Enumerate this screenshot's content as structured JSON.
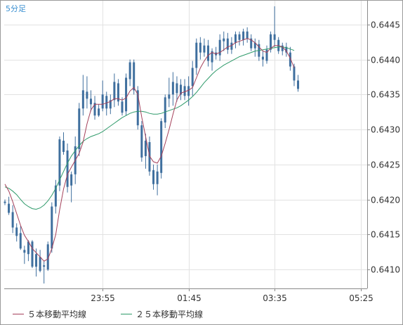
{
  "timeframe_label": "5分足",
  "legend": [
    {
      "label": "５本移動平均線",
      "color": "#a4405a"
    },
    {
      "label": "２５本移動平均線",
      "color": "#2e9a6a"
    }
  ],
  "chart_data": {
    "type": "candlestick",
    "y_ticks": [
      "0.6410",
      "0.6415",
      "0.6420",
      "0.6425",
      "0.6430",
      "0.6435",
      "0.6440",
      "0.6445"
    ],
    "y_tick_values": [
      0.641,
      0.6415,
      0.642,
      0.6425,
      0.643,
      0.6435,
      0.644,
      0.6445
    ],
    "x_ticks": [
      {
        "label": "23:55",
        "index": 25
      },
      {
        "label": "01:45",
        "index": 47
      },
      {
        "label": "03:35",
        "index": 69
      },
      {
        "label": "05:25",
        "index": 91
      }
    ],
    "ylim": [
      0.64073,
      0.64484
    ],
    "candle_color": "#3f6f9e",
    "grid": true,
    "candles": [
      [
        0.64197,
        0.642,
        0.64192,
        0.64195
      ],
      [
        0.64194,
        0.64204,
        0.64178,
        0.64181
      ],
      [
        0.64182,
        0.64192,
        0.64152,
        0.6416
      ],
      [
        0.6416,
        0.64166,
        0.6414,
        0.64148
      ],
      [
        0.64152,
        0.64162,
        0.64128,
        0.6413
      ],
      [
        0.64128,
        0.64134,
        0.64108,
        0.64124
      ],
      [
        0.64122,
        0.64142,
        0.64112,
        0.6414
      ],
      [
        0.6414,
        0.64142,
        0.64102,
        0.64104
      ],
      [
        0.64104,
        0.6413,
        0.6409,
        0.64122
      ],
      [
        0.64118,
        0.64128,
        0.64096,
        0.64098
      ],
      [
        0.64106,
        0.64112,
        0.6408,
        0.64104
      ],
      [
        0.641,
        0.6414,
        0.64098,
        0.64136
      ],
      [
        0.6413,
        0.64196,
        0.64124,
        0.6419
      ],
      [
        0.6419,
        0.64228,
        0.6418,
        0.6422
      ],
      [
        0.6422,
        0.6429,
        0.64212,
        0.64286
      ],
      [
        0.64284,
        0.64296,
        0.64264,
        0.64268
      ],
      [
        0.6427,
        0.6428,
        0.6421,
        0.64218
      ],
      [
        0.6422,
        0.6424,
        0.64196,
        0.64236
      ],
      [
        0.64236,
        0.6429,
        0.64222,
        0.64276
      ],
      [
        0.64272,
        0.64338,
        0.64262,
        0.6433
      ],
      [
        0.6433,
        0.64378,
        0.6432,
        0.64356
      ],
      [
        0.64354,
        0.64376,
        0.6433,
        0.64344
      ],
      [
        0.64344,
        0.64356,
        0.64326,
        0.64336
      ],
      [
        0.64338,
        0.64348,
        0.64314,
        0.6432
      ],
      [
        0.6432,
        0.64336,
        0.64318,
        0.6433
      ],
      [
        0.6433,
        0.6437,
        0.64326,
        0.6435
      ],
      [
        0.64348,
        0.64354,
        0.6432,
        0.6433
      ],
      [
        0.6433,
        0.6435,
        0.64322,
        0.64342
      ],
      [
        0.64342,
        0.6438,
        0.64332,
        0.64368
      ],
      [
        0.64366,
        0.64372,
        0.64334,
        0.6434
      ],
      [
        0.6434,
        0.64346,
        0.6432,
        0.64324
      ],
      [
        0.64326,
        0.6438,
        0.6432,
        0.64374
      ],
      [
        0.64372,
        0.644,
        0.64362,
        0.64396
      ],
      [
        0.64396,
        0.644,
        0.6435,
        0.64356
      ],
      [
        0.64356,
        0.64362,
        0.643,
        0.64306
      ],
      [
        0.64306,
        0.64312,
        0.64254,
        0.6426
      ],
      [
        0.64262,
        0.64294,
        0.64244,
        0.64284
      ],
      [
        0.64282,
        0.6429,
        0.64234,
        0.6424
      ],
      [
        0.64242,
        0.6425,
        0.64214,
        0.64222
      ],
      [
        0.64222,
        0.6425,
        0.64206,
        0.6424
      ],
      [
        0.64238,
        0.64316,
        0.6423,
        0.64312
      ],
      [
        0.6431,
        0.6435,
        0.64302,
        0.64346
      ],
      [
        0.64344,
        0.64374,
        0.64332,
        0.6435
      ],
      [
        0.6435,
        0.64382,
        0.64334,
        0.64368
      ],
      [
        0.64366,
        0.64376,
        0.6434,
        0.64352
      ],
      [
        0.6435,
        0.64372,
        0.64342,
        0.64364
      ],
      [
        0.64362,
        0.64372,
        0.64342,
        0.64348
      ],
      [
        0.64348,
        0.64376,
        0.64334,
        0.64362
      ],
      [
        0.64362,
        0.64398,
        0.64348,
        0.64388
      ],
      [
        0.64388,
        0.6443,
        0.64378,
        0.64424
      ],
      [
        0.64424,
        0.64432,
        0.644,
        0.6441
      ],
      [
        0.6441,
        0.6443,
        0.64404,
        0.6442
      ],
      [
        0.6442,
        0.64428,
        0.6439,
        0.64398
      ],
      [
        0.64396,
        0.64416,
        0.64384,
        0.64412
      ],
      [
        0.6441,
        0.64418,
        0.644,
        0.64406
      ],
      [
        0.64406,
        0.64436,
        0.64398,
        0.64428
      ],
      [
        0.64426,
        0.6444,
        0.64412,
        0.6443
      ],
      [
        0.6443,
        0.64438,
        0.64408,
        0.64414
      ],
      [
        0.64414,
        0.64432,
        0.64408,
        0.64424
      ],
      [
        0.64424,
        0.6444,
        0.64416,
        0.64436
      ],
      [
        0.64436,
        0.6444,
        0.6442,
        0.64428
      ],
      [
        0.64428,
        0.64444,
        0.6442,
        0.6444
      ],
      [
        0.6444,
        0.64446,
        0.64424,
        0.6443
      ],
      [
        0.6443,
        0.64436,
        0.64412,
        0.64416
      ],
      [
        0.64416,
        0.6443,
        0.64404,
        0.64424
      ],
      [
        0.64422,
        0.64428,
        0.64398,
        0.64404
      ],
      [
        0.64404,
        0.64412,
        0.6439,
        0.644
      ],
      [
        0.64398,
        0.6442,
        0.64394,
        0.64414
      ],
      [
        0.64414,
        0.6444,
        0.6441,
        0.64436
      ],
      [
        0.64436,
        0.64476,
        0.64418,
        0.64428
      ],
      [
        0.64428,
        0.64432,
        0.64408,
        0.64412
      ],
      [
        0.64412,
        0.64424,
        0.64406,
        0.6442
      ],
      [
        0.64418,
        0.64424,
        0.64404,
        0.6441
      ],
      [
        0.6441,
        0.64418,
        0.64384,
        0.6439
      ],
      [
        0.6439,
        0.64394,
        0.64362,
        0.6437
      ],
      [
        0.6437,
        0.64378,
        0.64354,
        0.64358
      ]
    ],
    "sma5": [
      0.64222,
      0.64212,
      0.64197,
      0.6418,
      0.64163,
      0.64149,
      0.6414,
      0.6413,
      0.64124,
      0.64118,
      0.64112,
      0.64115,
      0.6413,
      0.6415,
      0.64185,
      0.64215,
      0.64236,
      0.64246,
      0.64256,
      0.64266,
      0.64282,
      0.64308,
      0.64328,
      0.64336,
      0.64336,
      0.64336,
      0.64338,
      0.6434,
      0.64344,
      0.64344,
      0.64342,
      0.64345,
      0.64355,
      0.6436,
      0.6435,
      0.64318,
      0.6429,
      0.64262,
      0.64254,
      0.64252,
      0.64262,
      0.6428,
      0.643,
      0.64322,
      0.64342,
      0.64352,
      0.64354,
      0.64356,
      0.6436,
      0.64374,
      0.64388,
      0.64398,
      0.64406,
      0.6441,
      0.64408,
      0.6441,
      0.64414,
      0.64418,
      0.6442,
      0.64424,
      0.64426,
      0.64428,
      0.6443,
      0.64428,
      0.64424,
      0.64418,
      0.64412,
      0.6441,
      0.64416,
      0.6442,
      0.6442,
      0.64418,
      0.64412,
      0.64402,
      0.64388
    ],
    "sma25": [
      0.64218,
      0.64216,
      0.64212,
      0.64207,
      0.642,
      0.64194,
      0.6419,
      0.64187,
      0.64186,
      0.64188,
      0.64192,
      0.64198,
      0.64206,
      0.64216,
      0.64228,
      0.6424,
      0.64252,
      0.64262,
      0.6427,
      0.64277,
      0.64283,
      0.64287,
      0.6429,
      0.64292,
      0.64294,
      0.64297,
      0.64301,
      0.64305,
      0.64309,
      0.64313,
      0.64317,
      0.6432,
      0.64323,
      0.64325,
      0.64326,
      0.64326,
      0.64325,
      0.64323,
      0.64322,
      0.64322,
      0.64323,
      0.64325,
      0.64327,
      0.64329,
      0.64331,
      0.64334,
      0.64338,
      0.64342,
      0.64347,
      0.64353,
      0.6436,
      0.64367,
      0.64373,
      0.64379,
      0.64384,
      0.64388,
      0.64392,
      0.64395,
      0.64398,
      0.64401,
      0.64404,
      0.64406,
      0.64408,
      0.6441,
      0.64412,
      0.64413,
      0.64414,
      0.64415,
      0.64416,
      0.64417,
      0.64418,
      0.64418,
      0.64417,
      0.64415,
      0.64413
    ]
  }
}
